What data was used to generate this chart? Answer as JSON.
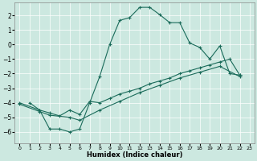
{
  "xlabel": "Humidex (Indice chaleur)",
  "bg_color": "#cce8e0",
  "line_color": "#1a6b5a",
  "grid_color": "#ffffff",
  "xlim": [
    -0.5,
    23.5
  ],
  "ylim": [
    -6.8,
    2.9
  ],
  "xticks": [
    0,
    1,
    2,
    3,
    4,
    5,
    6,
    7,
    8,
    9,
    10,
    11,
    12,
    13,
    14,
    15,
    16,
    17,
    18,
    19,
    20,
    21,
    22,
    23
  ],
  "yticks": [
    -6,
    -5,
    -4,
    -3,
    -2,
    -1,
    0,
    1,
    2
  ],
  "line1_x": [
    1,
    2,
    3,
    4,
    5,
    6,
    7,
    8,
    9,
    10,
    11,
    12,
    13,
    14,
    15,
    16,
    17,
    18,
    19,
    20,
    21,
    22
  ],
  "line1_y": [
    -4.0,
    -4.5,
    -5.8,
    -5.8,
    -6.0,
    -5.8,
    -4.0,
    -2.2,
    0.0,
    1.65,
    1.85,
    2.55,
    2.55,
    2.05,
    1.5,
    1.5,
    0.1,
    -0.2,
    -1.0,
    -0.1,
    -2.0,
    -2.1
  ],
  "line2_x": [
    0,
    2,
    3,
    4,
    5,
    6,
    7,
    8,
    9,
    10,
    11,
    12,
    13,
    14,
    15,
    16,
    17,
    18,
    19,
    20,
    21,
    22
  ],
  "line2_y": [
    -4.0,
    -4.5,
    -4.7,
    -4.9,
    -4.5,
    -4.8,
    -3.9,
    -4.0,
    -3.7,
    -3.4,
    -3.2,
    -3.0,
    -2.7,
    -2.5,
    -2.3,
    -2.0,
    -1.8,
    -1.6,
    -1.4,
    -1.2,
    -1.0,
    -2.1
  ],
  "line3_x": [
    0,
    2,
    3,
    5,
    6,
    8,
    10,
    12,
    14,
    16,
    18,
    20,
    22
  ],
  "line3_y": [
    -4.1,
    -4.6,
    -4.85,
    -5.0,
    -5.2,
    -4.5,
    -3.9,
    -3.3,
    -2.8,
    -2.3,
    -1.9,
    -1.5,
    -2.2
  ]
}
